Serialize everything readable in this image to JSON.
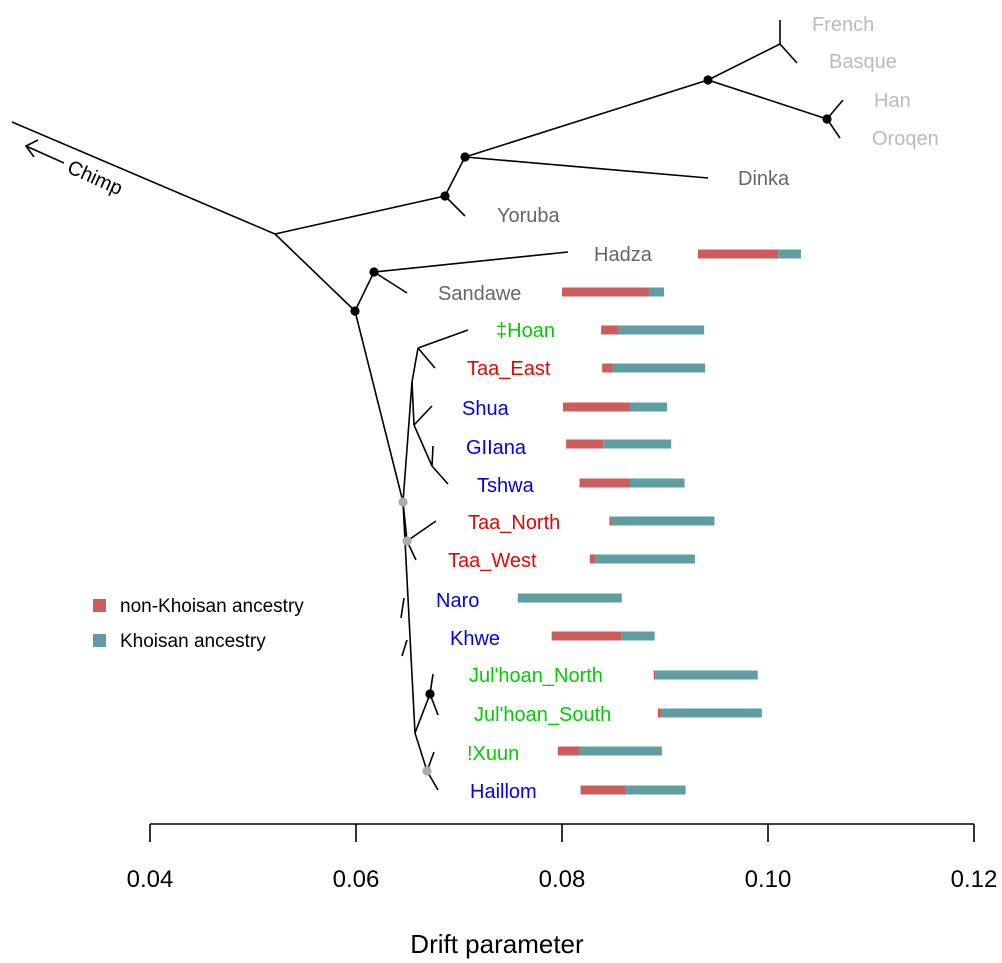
{
  "chart_data": {
    "type": "tree-with-bar-ranges",
    "xlabel": "Drift parameter",
    "xlim": [
      0.04,
      0.12
    ],
    "xticks": [
      {
        "value": 0.04,
        "label": "0.04"
      },
      {
        "value": 0.06,
        "label": "0.06"
      },
      {
        "value": 0.08,
        "label": "0.08"
      },
      {
        "value": 0.1,
        "label": "0.10"
      },
      {
        "value": 0.12,
        "label": "0.12"
      }
    ],
    "colors": {
      "non_khoisan": "#CD5C5C",
      "khoisan": "#5F9EA0",
      "branch": "#000000",
      "node_black": "#000000",
      "node_gray": "#AAAAAA",
      "label_lightgray": "#BBBBBB",
      "label_gray": "#666666",
      "label_green": "#00CC00",
      "label_red": "#EE0000",
      "label_blue": "#0000EE"
    },
    "outgroup": {
      "label": "Chimp"
    },
    "populations": [
      {
        "name": "French",
        "color": "label_lightgray"
      },
      {
        "name": "Basque",
        "color": "label_lightgray"
      },
      {
        "name": "Han",
        "color": "label_lightgray"
      },
      {
        "name": "Oroqen",
        "color": "label_lightgray"
      },
      {
        "name": "Dinka",
        "color": "label_gray"
      },
      {
        "name": "Yoruba",
        "color": "label_gray"
      },
      {
        "name": "Hadza",
        "color": "label_gray",
        "bar": {
          "start": 0.0932,
          "split": 0.101,
          "end": 0.1032
        }
      },
      {
        "name": "Sandawe",
        "color": "label_gray",
        "bar": {
          "start": 0.08,
          "split": 0.0884,
          "end": 0.0899
        }
      },
      {
        "name": "‡Hoan",
        "color": "label_green",
        "bar": {
          "start": 0.0838,
          "split": 0.0855,
          "end": 0.0938
        }
      },
      {
        "name": "Taa_East",
        "color": "label_red",
        "bar": {
          "start": 0.0839,
          "split": 0.0849,
          "end": 0.0939
        }
      },
      {
        "name": "Shua",
        "color": "label_blue",
        "bar": {
          "start": 0.0801,
          "split": 0.0866,
          "end": 0.0902
        }
      },
      {
        "name": "GIIana",
        "color": "label_blue",
        "bar": {
          "start": 0.0804,
          "split": 0.084,
          "end": 0.0906
        }
      },
      {
        "name": "Tshwa",
        "color": "label_blue",
        "bar": {
          "start": 0.0817,
          "split": 0.0866,
          "end": 0.0919
        }
      },
      {
        "name": "Taa_North",
        "color": "label_red",
        "bar": {
          "start": 0.0846,
          "split": 0.0848,
          "end": 0.0948
        }
      },
      {
        "name": "Taa_West",
        "color": "label_red",
        "bar": {
          "start": 0.0827,
          "split": 0.0832,
          "end": 0.0929
        }
      },
      {
        "name": "Naro",
        "color": "label_blue",
        "bar": {
          "start": 0.0757,
          "split": 0.0757,
          "end": 0.0858
        }
      },
      {
        "name": "Khwe",
        "color": "label_blue",
        "bar": {
          "start": 0.079,
          "split": 0.0858,
          "end": 0.089
        }
      },
      {
        "name": "Jul'hoan_North",
        "color": "label_green",
        "bar": {
          "start": 0.0889,
          "split": 0.0891,
          "end": 0.099
        }
      },
      {
        "name": "Jul'hoan_South",
        "color": "label_green",
        "bar": {
          "start": 0.0893,
          "split": 0.0896,
          "end": 0.0994
        }
      },
      {
        "name": "!Xuun",
        "color": "label_green",
        "bar": {
          "start": 0.0796,
          "split": 0.0817,
          "end": 0.0897
        }
      },
      {
        "name": "Haillom",
        "color": "label_blue",
        "bar": {
          "start": 0.0818,
          "split": 0.0862,
          "end": 0.092
        }
      }
    ],
    "legend": {
      "position": "left-middle",
      "entries": [
        {
          "label": "non-Khoisan ancestry",
          "color": "non_khoisan"
        },
        {
          "label": "Khoisan ancestry",
          "color": "khoisan"
        }
      ]
    }
  }
}
